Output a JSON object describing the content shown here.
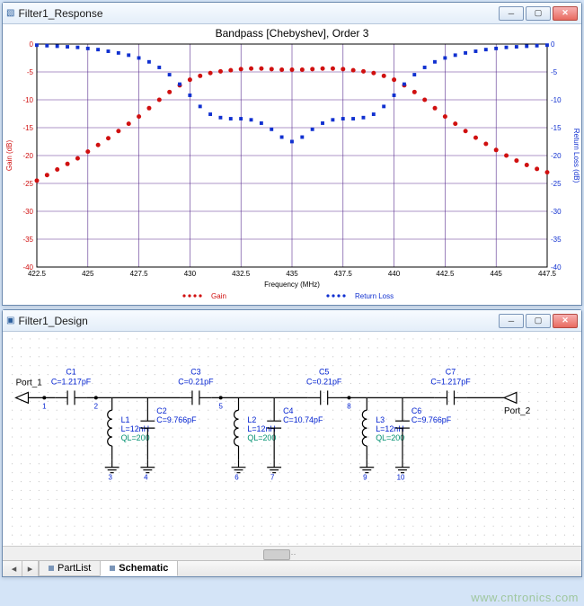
{
  "watermark": "www.cntronics.com",
  "response_window": {
    "title": "Filter1_Response",
    "chart": {
      "title": "Bandpass [Chebyshev], Order 3",
      "title_fontsize": 12,
      "background_color": "#ffffff",
      "grid_color": "#5a2f8f",
      "plot_border_color": "#000000",
      "x": {
        "label": "Frequency (MHz)",
        "min": 422.5,
        "max": 447.5,
        "tick_step": 2.5,
        "ticks": [
          422.5,
          425,
          427.5,
          430,
          432.5,
          435,
          437.5,
          440,
          442.5,
          445,
          447.5
        ]
      },
      "y_left": {
        "label": "Gain (dB)",
        "color": "#d01010",
        "min": -40,
        "max": 0,
        "tick_step": 5,
        "ticks": [
          0,
          -5,
          -10,
          -15,
          -20,
          -25,
          -30,
          -35,
          -40
        ]
      },
      "y_right": {
        "label": "Return Loss (dB)",
        "color": "#1030d0",
        "min": -40,
        "max": 0,
        "tick_step": 5,
        "ticks": [
          0,
          -5,
          -10,
          -15,
          -20,
          -25,
          -30,
          -35,
          -40
        ]
      },
      "legend": {
        "items": [
          {
            "label": "Gain",
            "color": "#d01010",
            "marker": "dot"
          },
          {
            "label": "Return Loss",
            "color": "#1030d0",
            "marker": "dot"
          }
        ]
      },
      "series": {
        "gain": {
          "color": "#d01010",
          "marker": "dot",
          "marker_size": 3,
          "line_width": 0,
          "points": [
            [
              422.5,
              -24.5
            ],
            [
              423.0,
              -23.5
            ],
            [
              423.5,
              -22.5
            ],
            [
              424.0,
              -21.5
            ],
            [
              424.5,
              -20.5
            ],
            [
              425.0,
              -19.3
            ],
            [
              425.5,
              -18.1
            ],
            [
              426.0,
              -16.9
            ],
            [
              426.5,
              -15.6
            ],
            [
              427.0,
              -14.3
            ],
            [
              427.5,
              -13.0
            ],
            [
              428.0,
              -11.5
            ],
            [
              428.5,
              -10.0
            ],
            [
              429.0,
              -8.6
            ],
            [
              429.5,
              -7.4
            ],
            [
              430.0,
              -6.4
            ],
            [
              430.5,
              -5.7
            ],
            [
              431.0,
              -5.2
            ],
            [
              431.5,
              -4.9
            ],
            [
              432.0,
              -4.7
            ],
            [
              432.5,
              -4.5
            ],
            [
              433.0,
              -4.4
            ],
            [
              433.5,
              -4.4
            ],
            [
              434.0,
              -4.5
            ],
            [
              434.5,
              -4.6
            ],
            [
              435.0,
              -4.6
            ],
            [
              435.5,
              -4.6
            ],
            [
              436.0,
              -4.5
            ],
            [
              436.5,
              -4.4
            ],
            [
              437.0,
              -4.4
            ],
            [
              437.5,
              -4.5
            ],
            [
              438.0,
              -4.7
            ],
            [
              438.5,
              -4.9
            ],
            [
              439.0,
              -5.2
            ],
            [
              439.5,
              -5.7
            ],
            [
              440.0,
              -6.4
            ],
            [
              440.5,
              -7.4
            ],
            [
              441.0,
              -8.6
            ],
            [
              441.5,
              -10.0
            ],
            [
              442.0,
              -11.5
            ],
            [
              442.5,
              -13.0
            ],
            [
              443.0,
              -14.3
            ],
            [
              443.5,
              -15.6
            ],
            [
              444.0,
              -16.8
            ],
            [
              444.5,
              -17.9
            ],
            [
              445.0,
              -19.0
            ],
            [
              445.5,
              -20.0
            ],
            [
              446.0,
              -20.9
            ],
            [
              446.5,
              -21.7
            ],
            [
              447.0,
              -22.4
            ],
            [
              447.5,
              -23.0
            ]
          ]
        },
        "return_loss": {
          "color": "#1030d0",
          "marker": "square",
          "marker_size": 3,
          "line_width": 0,
          "points": [
            [
              422.5,
              -0.2
            ],
            [
              423.0,
              -0.3
            ],
            [
              423.5,
              -0.4
            ],
            [
              424.0,
              -0.5
            ],
            [
              424.5,
              -0.6
            ],
            [
              425.0,
              -0.8
            ],
            [
              425.5,
              -1.0
            ],
            [
              426.0,
              -1.3
            ],
            [
              426.5,
              -1.6
            ],
            [
              427.0,
              -2.0
            ],
            [
              427.5,
              -2.5
            ],
            [
              428.0,
              -3.2
            ],
            [
              428.5,
              -4.2
            ],
            [
              429.0,
              -5.5
            ],
            [
              429.5,
              -7.2
            ],
            [
              430.0,
              -9.2
            ],
            [
              430.5,
              -11.2
            ],
            [
              431.0,
              -12.6
            ],
            [
              431.5,
              -13.2
            ],
            [
              432.0,
              -13.4
            ],
            [
              432.5,
              -13.4
            ],
            [
              433.0,
              -13.6
            ],
            [
              433.5,
              -14.2
            ],
            [
              434.0,
              -15.3
            ],
            [
              434.5,
              -16.7
            ],
            [
              435.0,
              -17.5
            ],
            [
              435.5,
              -16.7
            ],
            [
              436.0,
              -15.3
            ],
            [
              436.5,
              -14.2
            ],
            [
              437.0,
              -13.6
            ],
            [
              437.5,
              -13.4
            ],
            [
              438.0,
              -13.4
            ],
            [
              438.5,
              -13.2
            ],
            [
              439.0,
              -12.6
            ],
            [
              439.5,
              -11.2
            ],
            [
              440.0,
              -9.2
            ],
            [
              440.5,
              -7.2
            ],
            [
              441.0,
              -5.5
            ],
            [
              441.5,
              -4.2
            ],
            [
              442.0,
              -3.2
            ],
            [
              442.5,
              -2.5
            ],
            [
              443.0,
              -2.0
            ],
            [
              443.5,
              -1.6
            ],
            [
              444.0,
              -1.3
            ],
            [
              444.5,
              -1.0
            ],
            [
              445.0,
              -0.8
            ],
            [
              445.5,
              -0.6
            ],
            [
              446.0,
              -0.5
            ],
            [
              446.5,
              -0.4
            ],
            [
              447.0,
              -0.3
            ],
            [
              447.5,
              -0.2
            ]
          ]
        }
      }
    }
  },
  "design_window": {
    "title": "Filter1_Design",
    "tabs": {
      "partlist_label": "PartList",
      "schematic_label": "Schematic",
      "active": "schematic"
    },
    "schematic": {
      "dot_grid_color": "#c8c8c8",
      "wire_color": "#000000",
      "ref_color": "#0020d0",
      "value_color": "#0020d0",
      "ql_color": "#009070",
      "node_color": "#0020d0",
      "port_left_label": "Port_1",
      "port_right_label": "Port_2",
      "node_numbers": [
        1,
        2,
        3,
        4,
        5,
        6,
        7,
        8,
        9,
        10
      ],
      "components": {
        "C1": {
          "ref": "C1",
          "value": "C=1.217pF",
          "type": "series_cap"
        },
        "C2": {
          "ref": "C2",
          "value": "C=9.766pF",
          "type": "shunt_cap"
        },
        "L1": {
          "ref": "L1",
          "value": "L=12nH",
          "ql": "QL=200",
          "type": "shunt_ind"
        },
        "C3": {
          "ref": "C3",
          "value": "C=0.21pF",
          "type": "series_cap"
        },
        "C4": {
          "ref": "C4",
          "value": "C=10.74pF",
          "type": "shunt_cap"
        },
        "L2": {
          "ref": "L2",
          "value": "L=12nH",
          "ql": "QL=200",
          "type": "shunt_ind"
        },
        "C5": {
          "ref": "C5",
          "value": "C=0.21pF",
          "type": "series_cap"
        },
        "C6": {
          "ref": "C6",
          "value": "C=9.766pF",
          "type": "shunt_cap"
        },
        "L3": {
          "ref": "L3",
          "value": "L=12nH",
          "ql": "QL=200",
          "type": "shunt_ind"
        },
        "C7": {
          "ref": "C7",
          "value": "C=1.217pF",
          "type": "series_cap"
        }
      }
    }
  }
}
